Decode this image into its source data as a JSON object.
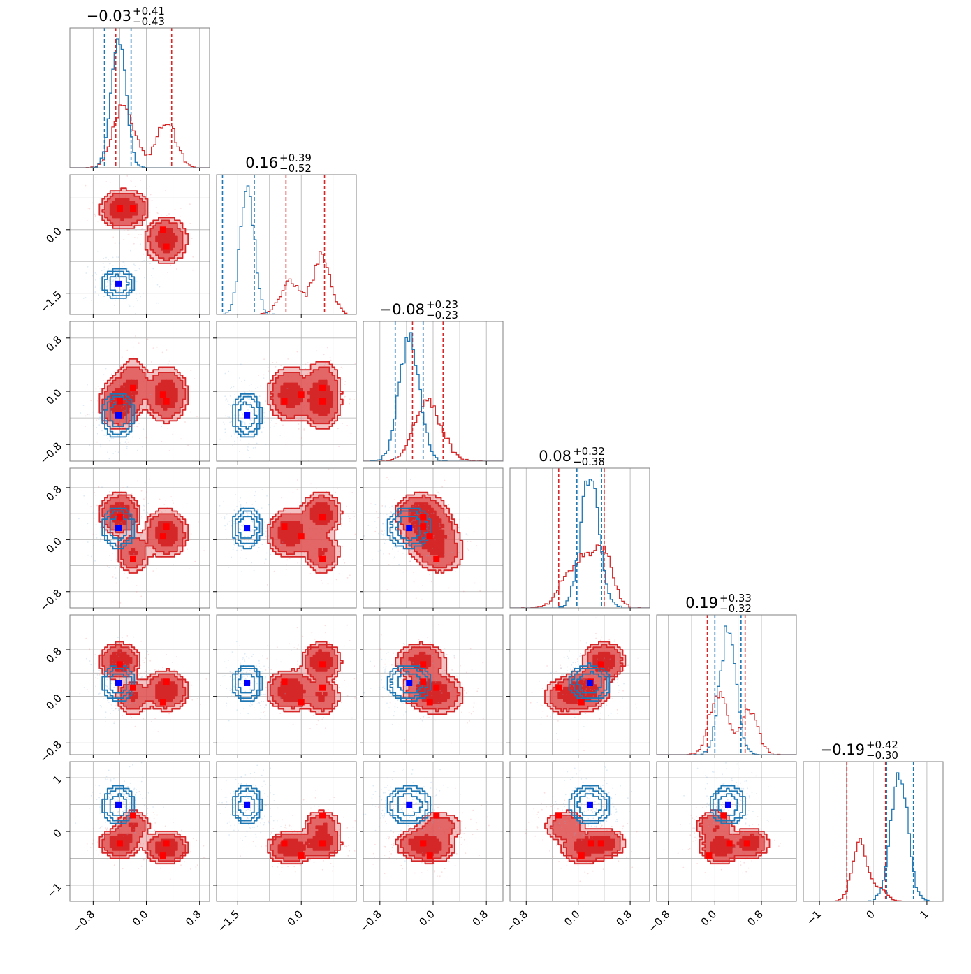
{
  "chart_data": {
    "type": "corner",
    "n_params": 6,
    "colors": {
      "primary": "#d62728",
      "secondary": "#1f77b4",
      "red_marker": "#ff0000",
      "blue_marker": "#0000ff"
    },
    "grid": true,
    "titles": [
      {
        "median": "−0.03",
        "plus": "+0.41",
        "minus": "−0.43"
      },
      {
        "median": "0.16",
        "plus": "+0.39",
        "minus": "−0.52"
      },
      {
        "median": "−0.08",
        "plus": "+0.23",
        "minus": "−0.23"
      },
      {
        "median": "0.08",
        "plus": "+0.32",
        "minus": "−0.38"
      },
      {
        "median": "0.19",
        "plus": "+0.33",
        "minus": "−0.32"
      },
      {
        "median": "−0.19",
        "plus": "+0.42",
        "minus": "−0.30"
      }
    ],
    "params": [
      {
        "range": [
          -1.15,
          0.95
        ],
        "ticks": [
          -0.8,
          0.0,
          0.8
        ],
        "tick_labels": [
          "−0.8",
          "0.0",
          "0.8"
        ],
        "gridlines": [
          -0.8,
          -0.4,
          0.0,
          0.4,
          0.8
        ]
      },
      {
        "range": [
          -2.0,
          1.3
        ],
        "ticks": [
          -1.5,
          0.0
        ],
        "tick_labels": [
          "−1.5",
          "0.0"
        ],
        "gridlines": [
          -1.5,
          -0.75,
          0.0,
          0.75
        ]
      },
      {
        "range": [
          -1.05,
          1.05
        ],
        "ticks": [
          -0.8,
          0.0,
          0.8
        ],
        "tick_labels": [
          "−0.8",
          "0.0",
          "0.8"
        ],
        "gridlines": [
          -0.8,
          -0.4,
          0.0,
          0.4,
          0.8
        ]
      },
      {
        "range": [
          -1.05,
          1.1
        ],
        "ticks": [
          -0.8,
          0.0,
          0.8
        ],
        "tick_labels": [
          "−0.8",
          "0.0",
          "0.8"
        ],
        "gridlines": [
          -0.8,
          -0.4,
          0.0,
          0.4,
          0.8
        ]
      },
      {
        "range": [
          -1.0,
          1.4
        ],
        "ticks": [
          -0.8,
          0.0,
          0.8
        ],
        "tick_labels": [
          "−0.8",
          "0.0",
          "0.8"
        ],
        "gridlines": [
          -0.8,
          -0.4,
          0.0,
          0.4,
          0.8
        ]
      },
      {
        "range": [
          -1.3,
          1.3
        ],
        "ticks": [
          -1,
          0,
          1
        ],
        "tick_labels": [
          "−1",
          "0",
          "1"
        ],
        "gridlines": [
          -1,
          -0.5,
          0,
          0.5,
          1
        ]
      }
    ],
    "distributions": {
      "primary": {
        "quantiles": [
          [
            -0.46,
            0.38
          ],
          [
            -0.36,
            0.55
          ],
          [
            -0.31,
            0.15
          ],
          [
            -0.3,
            0.4
          ],
          [
            -0.13,
            0.52
          ],
          [
            -0.49,
            0.23
          ]
        ],
        "modes": [
          {
            "w": 1.0,
            "mu": [
              -0.4,
              0.48,
              -0.18,
              0.4,
              0.6,
              -0.22
            ],
            "sd": [
              0.13,
              0.2,
              0.17,
              0.14,
              0.14,
              0.12
            ]
          },
          {
            "w": 1.0,
            "mu": [
              0.3,
              -0.25,
              -0.05,
              0.1,
              0.1,
              -0.3
            ],
            "sd": [
              0.14,
              0.24,
              0.18,
              0.16,
              0.15,
              0.13
            ]
          },
          {
            "w": 0.5,
            "mu": [
              -0.2,
              0.5,
              0.1,
              -0.2,
              0.0,
              0.1
            ],
            "sd": [
              0.12,
              0.2,
              0.18,
              0.15,
              0.15,
              0.14
            ]
          }
        ]
      },
      "secondary": {
        "quantiles": [
          [
            -0.63,
            -0.23
          ],
          [
            -1.86,
            -1.11
          ],
          [
            -0.57,
            -0.15
          ],
          [
            -0.02,
            0.36
          ],
          [
            0.0,
            0.45
          ],
          [
            0.25,
            0.75
          ]
        ],
        "modes": [
          {
            "w": 1.0,
            "mu": [
              -0.42,
              -1.28,
              -0.36,
              0.18,
              0.23,
              0.49
            ],
            "sd": [
              0.11,
              0.16,
              0.15,
              0.14,
              0.14,
              0.16
            ]
          }
        ]
      }
    },
    "markers": {
      "primary": [
        [
          -0.4,
          0.5,
          -0.15,
          0.35,
          0.55,
          -0.22
        ],
        [
          -0.2,
          0.5,
          0.05,
          -0.3,
          0.15,
          0.3
        ],
        [
          0.25,
          0.0,
          -0.05,
          0.05,
          -0.1,
          -0.45
        ],
        [
          0.3,
          -0.4,
          -0.15,
          0.2,
          0.25,
          -0.22
        ]
      ],
      "secondary": [
        [
          -0.42,
          -1.28,
          -0.36,
          0.18,
          0.23,
          0.49
        ]
      ]
    }
  }
}
